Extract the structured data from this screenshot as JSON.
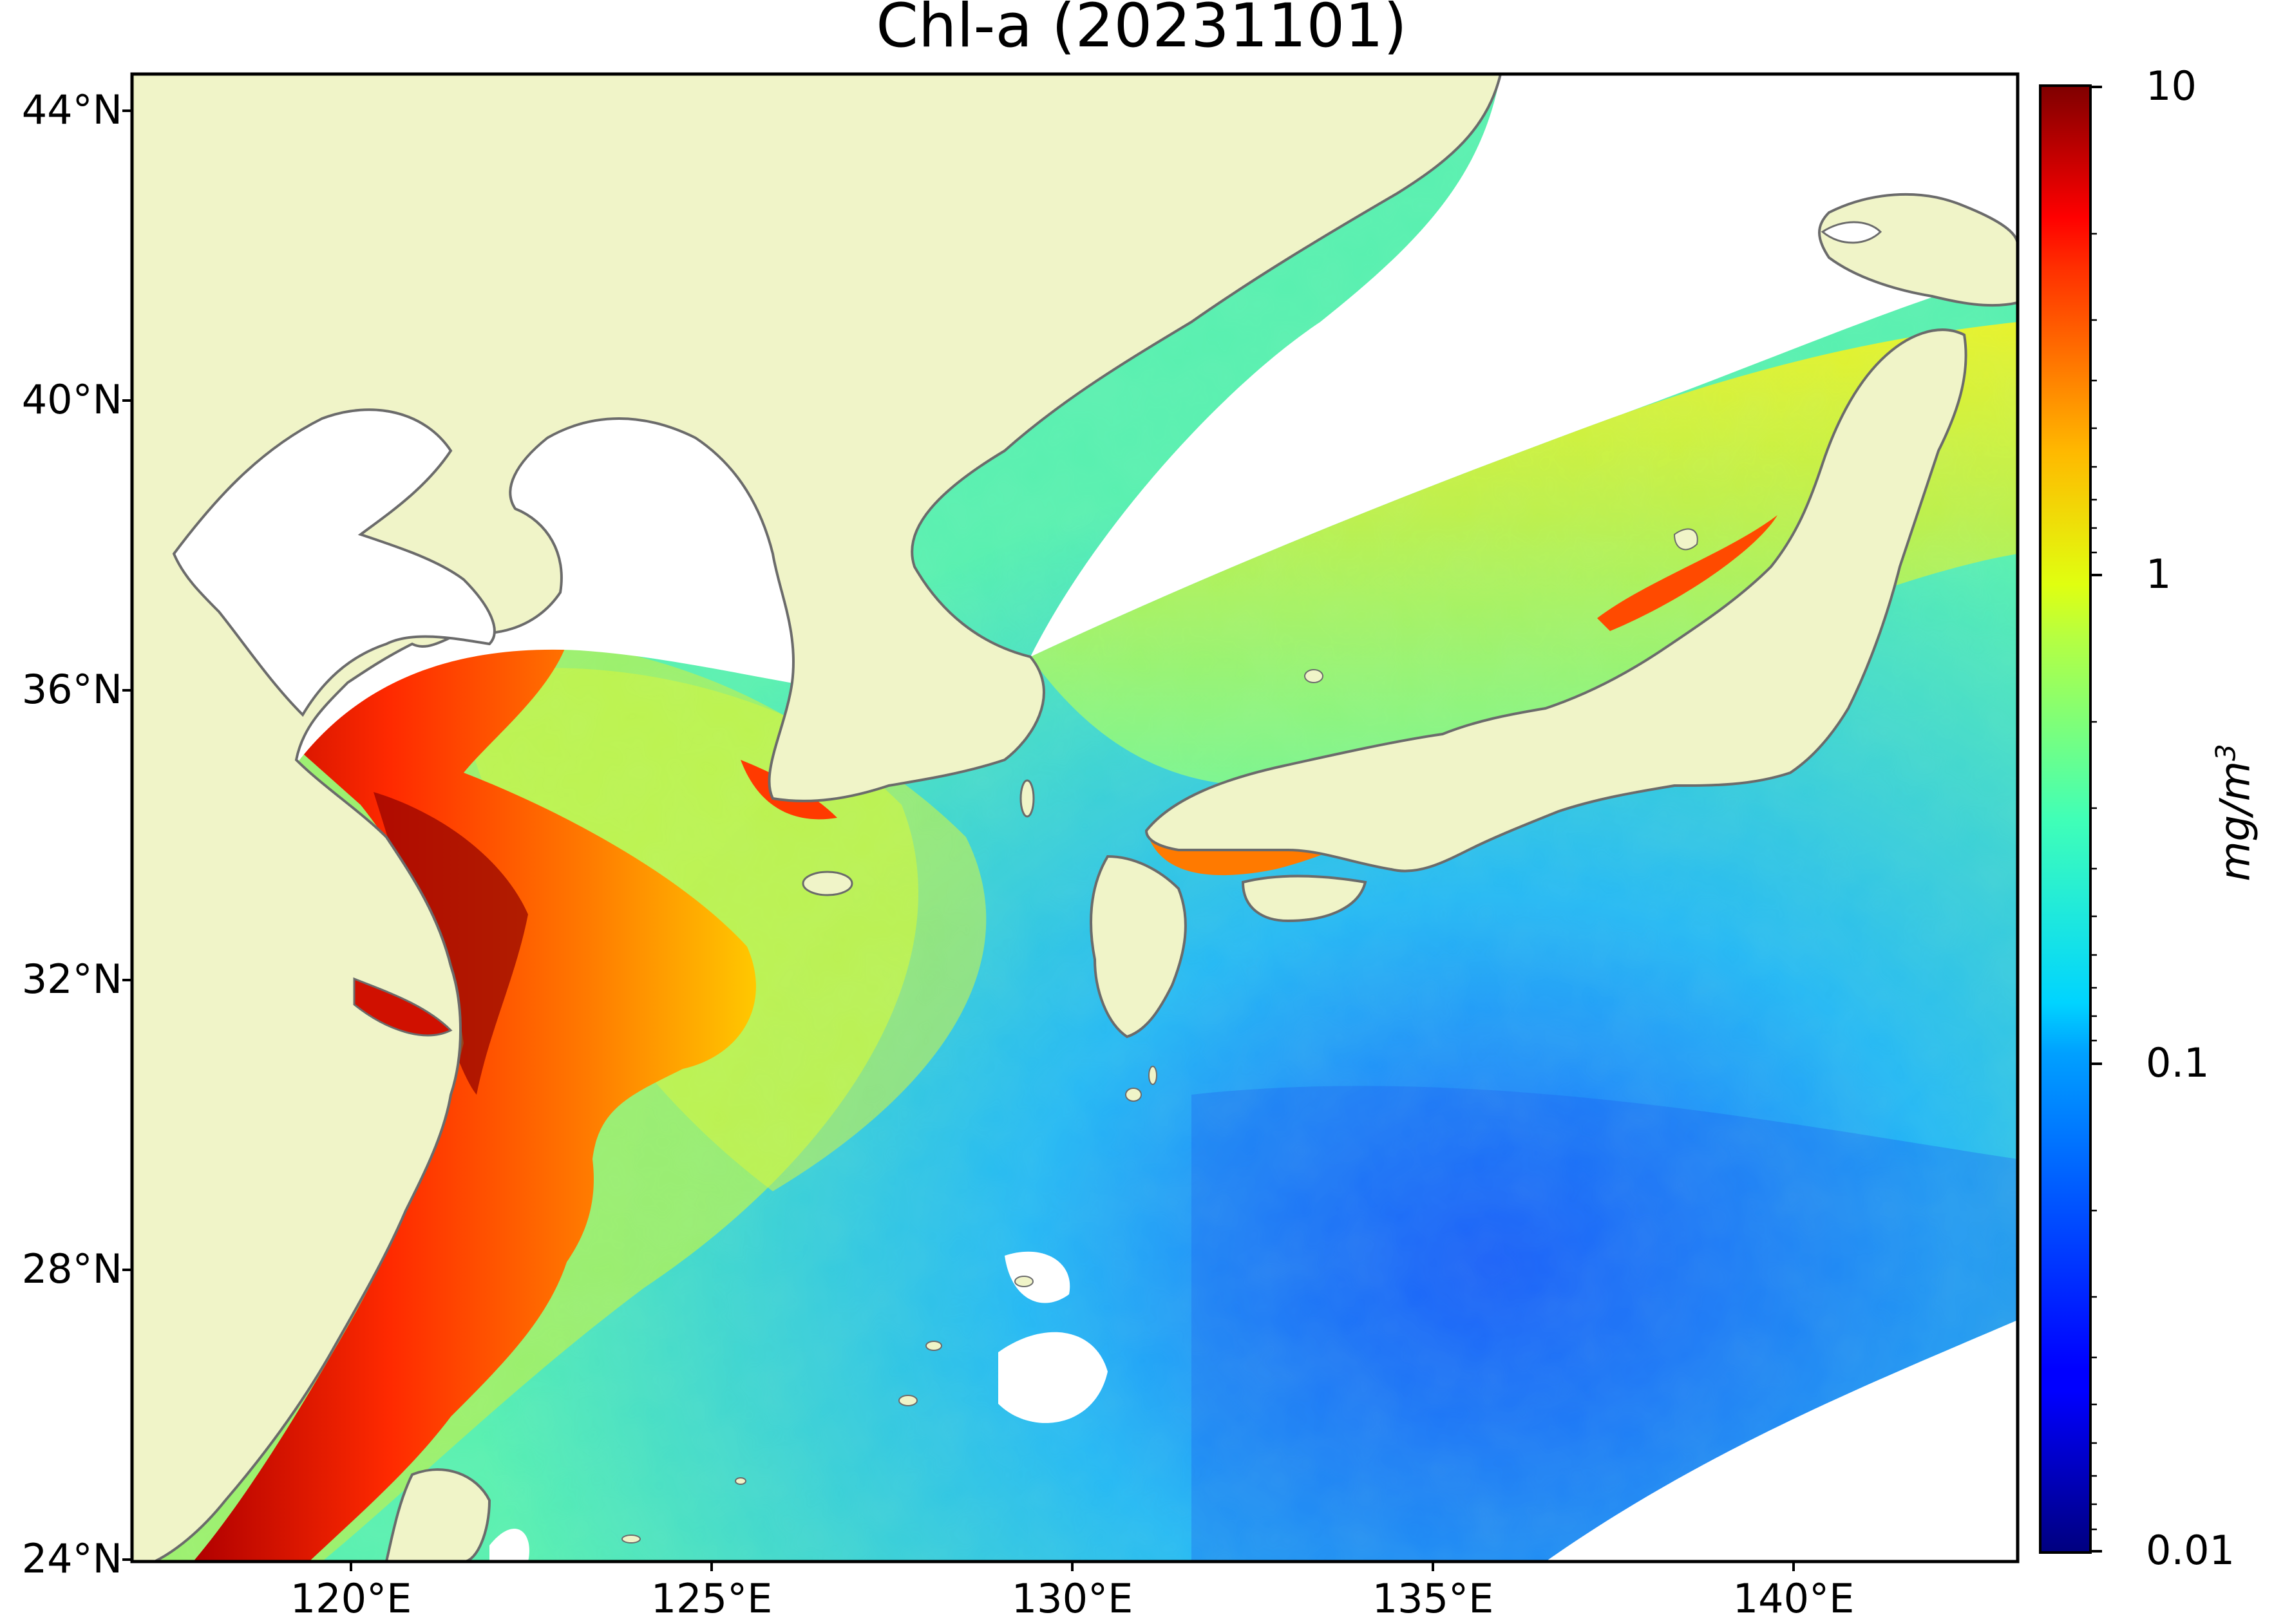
{
  "title": "Chl-a (20231101)",
  "map": {
    "lon_range": [
      116.0,
      143.0
    ],
    "lat_range": [
      24.0,
      44.5
    ],
    "lon_ticks": [
      "120°E",
      "125°E",
      "130°E",
      "135°E",
      "140°E"
    ],
    "lat_ticks": [
      "44°N",
      "40°N",
      "36°N",
      "32°N",
      "28°N",
      "24°N"
    ],
    "land_color": "#f0f4c8",
    "no_data_color": "#ffffff",
    "coastline_color": "#6b6b6b"
  },
  "colorbar": {
    "scale": "log",
    "range": [
      0.01,
      10
    ],
    "colormap": "jet",
    "tick_labels": [
      "10",
      "1",
      "0.1",
      "0.01"
    ],
    "units": "mg/m",
    "units_superscript": "3"
  }
}
